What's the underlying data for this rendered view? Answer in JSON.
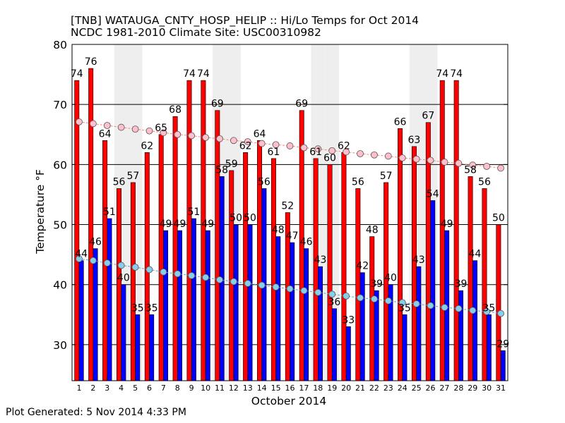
{
  "chart_data": {
    "type": "bar",
    "title": "[TNB] WATAUGA_CNTY_HOSP_HELIP :: Hi/Lo Temps for Oct 2014",
    "subtitle": "NCDC 1981-2010 Climate Site: USC00310982",
    "xlabel": "October 2014",
    "ylabel": "Temperature °F",
    "ylim": [
      24,
      80
    ],
    "yticks": [
      30,
      40,
      50,
      60,
      70,
      80
    ],
    "grid": true,
    "categories": [
      "1",
      "2",
      "3",
      "4",
      "5",
      "6",
      "7",
      "8",
      "9",
      "10",
      "11",
      "12",
      "13",
      "14",
      "15",
      "16",
      "17",
      "18",
      "19",
      "20",
      "21",
      "22",
      "23",
      "24",
      "25",
      "26",
      "27",
      "28",
      "29",
      "30",
      "31"
    ],
    "series": [
      {
        "values": [
          74,
          76,
          64,
          56,
          57,
          62,
          65,
          68,
          74,
          74,
          69,
          59,
          62,
          64,
          61,
          52,
          69,
          61,
          60,
          62,
          56,
          48,
          57,
          66,
          63,
          67,
          74,
          74,
          58,
          56,
          50
        ],
        "color": "#ff0000"
      },
      {
        "values": [
          44,
          46,
          51,
          40,
          35,
          35,
          49,
          49,
          51,
          49,
          58,
          50,
          50,
          56,
          48,
          47,
          46,
          43,
          36,
          33,
          42,
          39,
          40,
          35,
          43,
          54,
          49,
          39,
          44,
          35,
          29
        ],
        "color": "#0000ff"
      },
      {
        "values": [
          67.1,
          66.8,
          66.5,
          66.2,
          65.9,
          65.6,
          65.3,
          65.0,
          64.8,
          64.5,
          64.3,
          64.0,
          63.8,
          63.5,
          63.3,
          63.1,
          62.8,
          62.6,
          62.3,
          62.1,
          61.8,
          61.6,
          61.4,
          61.1,
          60.9,
          60.7,
          60.4,
          60.2,
          59.9,
          59.7,
          59.4
        ],
        "color": "#ffc0cb"
      },
      {
        "values": [
          44.3,
          44.0,
          43.6,
          43.2,
          42.9,
          42.5,
          42.1,
          41.8,
          41.5,
          41.2,
          40.8,
          40.5,
          40.2,
          39.9,
          39.6,
          39.3,
          39.0,
          38.7,
          38.4,
          38.1,
          37.8,
          37.6,
          37.3,
          37.0,
          36.8,
          36.5,
          36.2,
          36.0,
          35.7,
          35.5,
          35.2
        ],
        "color": "#87ceeb"
      }
    ],
    "shaded_categories": [
      "4",
      "5",
      "11",
      "12",
      "18",
      "19",
      "25",
      "26"
    ]
  },
  "footer": "Plot Generated: 5 Nov 2014 4:33 PM"
}
